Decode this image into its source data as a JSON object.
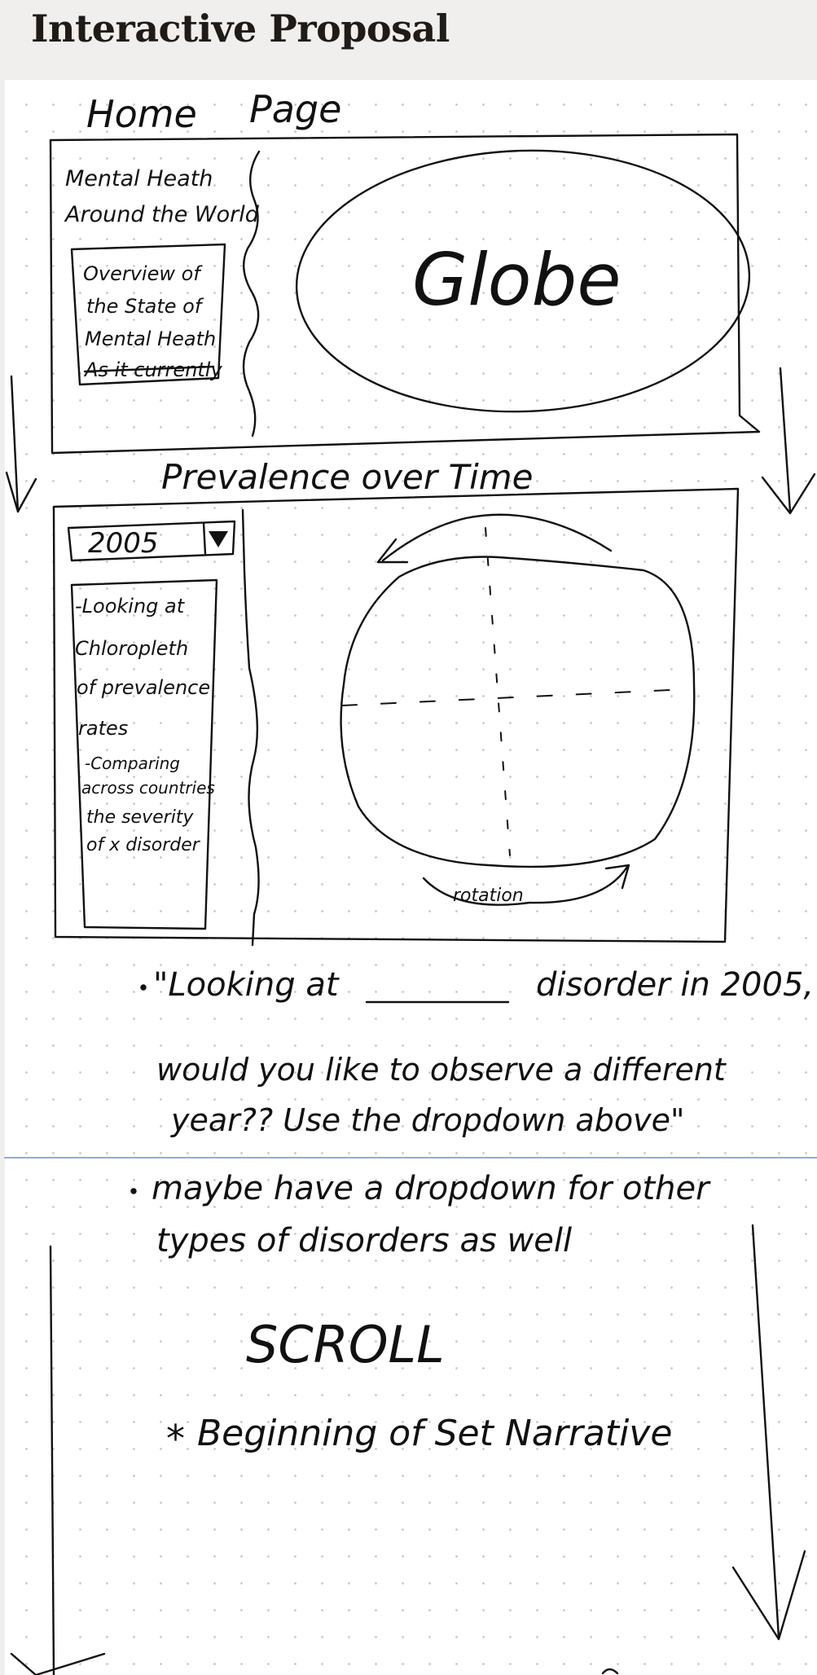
{
  "header": {
    "title": "Interactive Proposal"
  },
  "sketch": {
    "home": {
      "heading_left": "Home",
      "heading_right": "Page",
      "sidebar_title_1": "Mental Heath",
      "sidebar_title_2": "Around the World",
      "overview_lines": [
        "Overview of",
        "the State of",
        "Mental Heath",
        "As it currently"
      ],
      "globe_label": "Globe"
    },
    "prevalence": {
      "heading": "Prevalence over Time",
      "dropdown_value": "2005",
      "notes": [
        "-Looking at",
        "Chloropleth",
        "of prevalence",
        "rates",
        "-Comparing",
        "across countries",
        "the severity",
        "of x disorder"
      ],
      "rotation_label": "rotation"
    },
    "bullets": {
      "bullet_1_a": "\"Looking at",
      "bullet_1_b": "disorder in 2005,",
      "bullet_1_c": "would you like to observe a different",
      "bullet_1_d": "year?? Use the dropdown above\"",
      "bullet_2_a": "maybe have a dropdown for other",
      "bullet_2_b": "types of disorders as well"
    },
    "scroll_label": "SCROLL",
    "narrative_label": "Beginning of Set Narrative",
    "star_symbol": "*"
  }
}
